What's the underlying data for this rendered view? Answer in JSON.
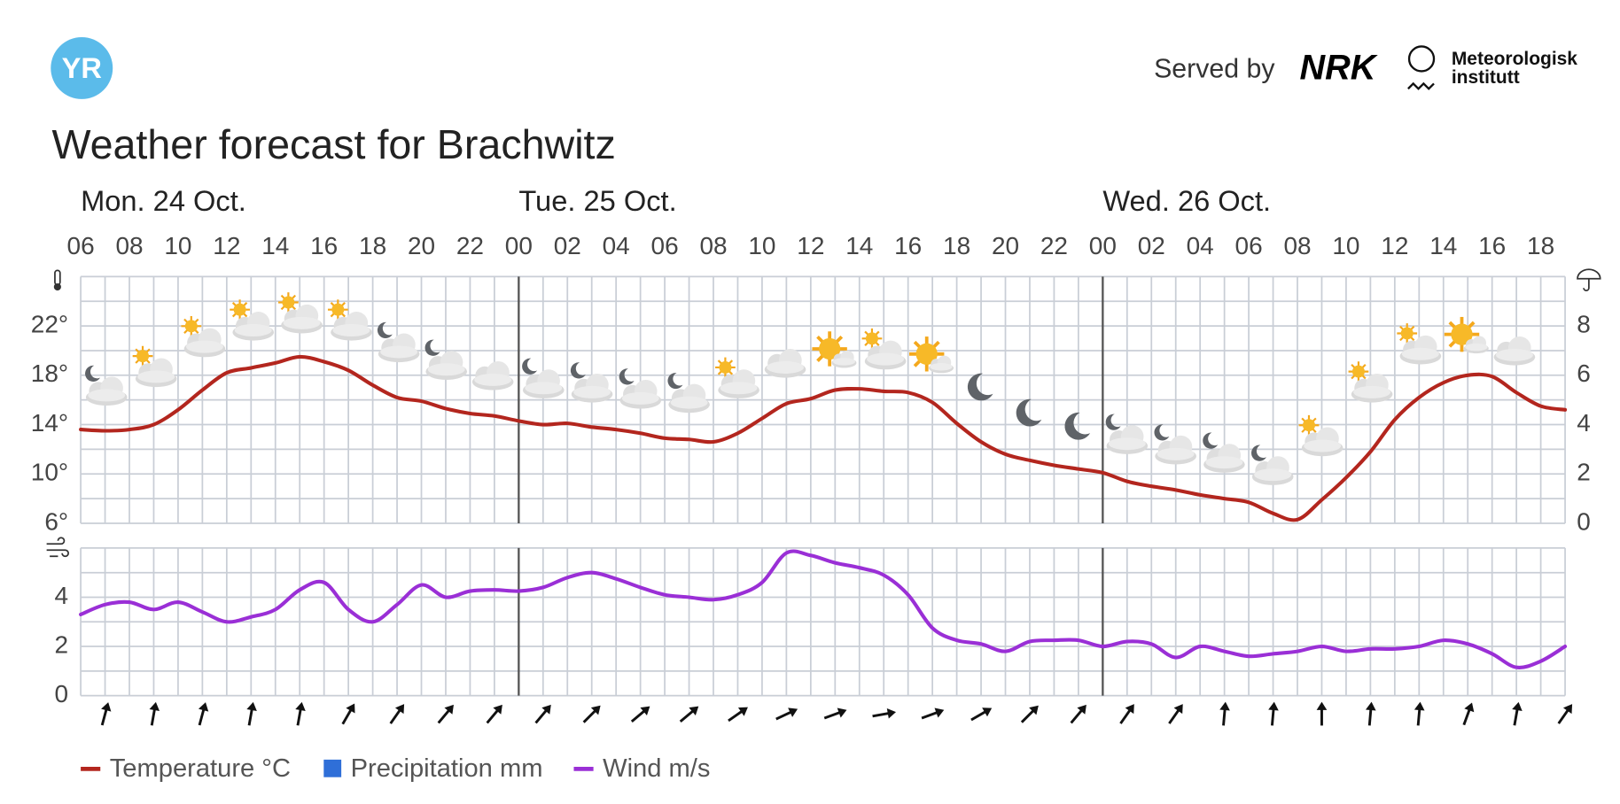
{
  "header": {
    "logo": "YR",
    "served_by": "Served by",
    "nrk": "NRK",
    "met_line1": "Meteorologisk",
    "met_line2": "institutt"
  },
  "chart_data": {
    "type": "line",
    "title": "Weather forecast for Brachwitz",
    "days": [
      "Mon. 24 Oct.",
      "Tue. 25 Oct.",
      "Wed. 26 Oct."
    ],
    "categories": [
      "06",
      null,
      "08",
      null,
      "10",
      null,
      "12",
      null,
      "14",
      null,
      "16",
      null,
      "18",
      null,
      "20",
      null,
      "22",
      null,
      "00",
      null,
      "02",
      null,
      "04",
      null,
      "06",
      null,
      "08",
      null,
      "10",
      null,
      "12",
      null,
      "14",
      null,
      "16",
      null,
      "18",
      null,
      "20",
      null,
      "22",
      null,
      "00",
      null,
      "02",
      null,
      "04",
      null,
      "06",
      null,
      "08",
      null,
      "10",
      null,
      "12",
      null,
      "14",
      null,
      "16",
      null,
      "18",
      null
    ],
    "series": [
      {
        "name": "Temperature °C",
        "type": "line",
        "axis": "y",
        "color": "#b3261e",
        "values": [
          13.6,
          13.5,
          13.6,
          14.0,
          15.2,
          16.8,
          18.2,
          18.6,
          19.0,
          19.5,
          19.1,
          18.4,
          17.2,
          16.2,
          15.9,
          15.3,
          14.9,
          14.7,
          14.3,
          14.0,
          14.1,
          13.8,
          13.6,
          13.3,
          12.9,
          12.8,
          12.6,
          13.3,
          14.5,
          15.7,
          16.1,
          16.8,
          16.9,
          16.7,
          16.6,
          15.8,
          14.1,
          12.6,
          11.6,
          11.1,
          10.7,
          10.4,
          10.1,
          9.4,
          9.0,
          8.7,
          8.3,
          8.0,
          7.7,
          6.8,
          6.3,
          7.9,
          9.7,
          11.8,
          14.4,
          16.2,
          17.4,
          18.0,
          17.9,
          16.6,
          15.5,
          15.2
        ]
      },
      {
        "name": "Precipitation mm",
        "type": "bar",
        "axis": "y2",
        "color": "#2f6fd8",
        "values": [
          0,
          0,
          0,
          0,
          0,
          0,
          0,
          0,
          0,
          0,
          0,
          0,
          0,
          0,
          0,
          0,
          0,
          0,
          0,
          0,
          0,
          0,
          0,
          0,
          0,
          0,
          0,
          0,
          0,
          0,
          0,
          0,
          0,
          0,
          0,
          0,
          0,
          0,
          0,
          0,
          0,
          0,
          0,
          0,
          0,
          0,
          0,
          0,
          0,
          0,
          0,
          0,
          0,
          0,
          0,
          0,
          0,
          0,
          0,
          0,
          0,
          0
        ]
      },
      {
        "name": "Wind m/s",
        "type": "line",
        "axis": "wind",
        "color": "#9a2fd6",
        "values": [
          3.3,
          3.7,
          3.8,
          3.5,
          3.8,
          3.4,
          3.0,
          3.2,
          3.5,
          4.3,
          4.6,
          3.5,
          3.0,
          3.7,
          4.5,
          4.0,
          4.25,
          4.3,
          4.25,
          4.4,
          4.8,
          5.0,
          4.75,
          4.4,
          4.1,
          4.0,
          3.9,
          4.1,
          4.6,
          5.8,
          5.7,
          5.4,
          5.2,
          4.9,
          4.1,
          2.75,
          2.25,
          2.1,
          1.8,
          2.2,
          2.25,
          2.25,
          2.0,
          2.2,
          2.1,
          1.55,
          2.0,
          1.8,
          1.6,
          1.7,
          1.8,
          2.0,
          1.8,
          1.9,
          1.9,
          2.0,
          2.25,
          2.1,
          1.7,
          1.15,
          1.4,
          2.0
        ]
      }
    ],
    "wind_direction": [
      null,
      15,
      null,
      10,
      null,
      15,
      null,
      10,
      null,
      10,
      null,
      30,
      null,
      35,
      null,
      40,
      null,
      40,
      null,
      40,
      null,
      45,
      null,
      50,
      null,
      50,
      null,
      55,
      null,
      65,
      null,
      70,
      null,
      80,
      null,
      70,
      null,
      60,
      null,
      45,
      null,
      40,
      null,
      35,
      null,
      35,
      null,
      5,
      null,
      5,
      null,
      0,
      null,
      5,
      null,
      5,
      null,
      20,
      null,
      10,
      null,
      35
    ],
    "ylim": [
      6,
      26
    ],
    "yticks": [
      {
        "value": 6,
        "label": "6°"
      },
      {
        "value": 10,
        "label": "10°"
      },
      {
        "value": 14,
        "label": "14°"
      },
      {
        "value": 18,
        "label": "18°"
      },
      {
        "value": 22,
        "label": "22°"
      }
    ],
    "ygrid": [
      6,
      8,
      10,
      12,
      14,
      16,
      18,
      20,
      22,
      24,
      26
    ],
    "y2lim": [
      0,
      10
    ],
    "y2ticks": [
      0,
      2,
      4,
      6,
      8
    ],
    "wind_ylim": [
      0,
      6
    ],
    "wind_yticks": [
      0,
      2,
      4
    ],
    "wind_ygrid": [
      0,
      1,
      2,
      3,
      4,
      5,
      6
    ],
    "grid": true
  }
}
